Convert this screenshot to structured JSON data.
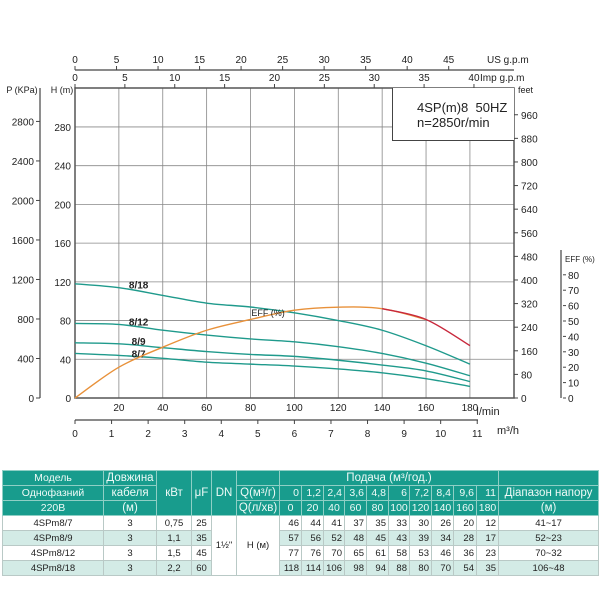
{
  "chart_data": {
    "type": "line",
    "title": "4SP(m)8  50HZ",
    "subtitle": "n=2850r/min",
    "x": [
      0,
      20,
      40,
      60,
      80,
      100,
      120,
      140,
      160,
      180
    ],
    "xlabel": "l/min",
    "xlim": [
      0,
      200
    ],
    "xticks": [
      20,
      40,
      60,
      80,
      100,
      120,
      140,
      160,
      180
    ],
    "ylabel": "H (m)",
    "ylim": [
      0,
      320
    ],
    "yticks": [
      0,
      40,
      80,
      120,
      160,
      200,
      240,
      280
    ],
    "grid": true,
    "series": [
      {
        "name": "8/18",
        "values": [
          118,
          114,
          106,
          98,
          94,
          88,
          80,
          70,
          54,
          35
        ]
      },
      {
        "name": "8/12",
        "values": [
          77,
          76,
          70,
          65,
          61,
          58,
          53,
          46,
          36,
          23
        ]
      },
      {
        "name": "8/9",
        "values": [
          57,
          56,
          52,
          48,
          45,
          43,
          39,
          34,
          28,
          17
        ]
      },
      {
        "name": "8/7",
        "values": [
          46,
          44,
          41,
          37,
          35,
          33,
          30,
          26,
          20,
          12
        ]
      },
      {
        "name": "EFF (%)",
        "axis": "EFF (%)",
        "values": [
          0,
          20,
          33,
          44,
          51,
          57,
          59,
          58,
          51,
          34
        ]
      }
    ],
    "secondary_axes": {
      "p_kpa": {
        "label": "P (KPa)",
        "ticks": [
          0,
          400,
          800,
          1200,
          1600,
          2000,
          2400,
          2800
        ]
      },
      "feet": {
        "label": "feet",
        "ticks": [
          0,
          80,
          160,
          240,
          320,
          400,
          480,
          560,
          640,
          720,
          800,
          880,
          960
        ]
      },
      "eff": {
        "label": "EFF (%)",
        "ticks": [
          0,
          10,
          20,
          30,
          40,
          50,
          60,
          70,
          80
        ]
      },
      "m3h": {
        "label": "m³/h",
        "ticks": [
          0,
          1,
          2,
          3,
          4,
          5,
          6,
          7,
          8,
          9,
          10,
          11
        ]
      },
      "us_gpm": {
        "label": "US g.p.m",
        "ticks": [
          0,
          5,
          10,
          15,
          20,
          25,
          30,
          35,
          40,
          45
        ]
      },
      "imp_gpm": {
        "label": "Imp g.p.m",
        "ticks": [
          0,
          5,
          10,
          15,
          20,
          25,
          30,
          35,
          40
        ]
      }
    },
    "colors": {
      "head": "#1f9a8c",
      "eff": "#e8913a",
      "eff_overload": "#c8283c",
      "grid": "#555555"
    }
  },
  "table": {
    "header": {
      "model": [
        "Модель",
        "Однофазний",
        "220В"
      ],
      "cable": [
        "Довжина",
        "кабеля",
        "(м)"
      ],
      "kw": "кВт",
      "uf": "μF",
      "dn": "DN",
      "flow": "Подача (м³/год.)",
      "q_m3h_label": "Q(м³/г)",
      "q_lmin_label": "Q(л/хв)",
      "q_m3h": [
        "0",
        "1,2",
        "2,4",
        "3,6",
        "4,8",
        "6",
        "7,2",
        "8,4",
        "9,6",
        "11"
      ],
      "q_lmin": [
        "0",
        "20",
        "40",
        "60",
        "80",
        "100",
        "120",
        "140",
        "160",
        "180"
      ],
      "range": [
        "Діапазон напору",
        "(м)"
      ]
    },
    "dn_value": "1½\"",
    "h_label": "H (м)",
    "rows": [
      {
        "model": "4SPm8/7",
        "cable": "3",
        "kw": "0,75",
        "uf": "25",
        "h": [
          "46",
          "44",
          "41",
          "37",
          "35",
          "33",
          "30",
          "26",
          "20",
          "12"
        ],
        "range": "41~17"
      },
      {
        "model": "4SPm8/9",
        "cable": "3",
        "kw": "1,1",
        "uf": "35",
        "h": [
          "57",
          "56",
          "52",
          "48",
          "45",
          "43",
          "39",
          "34",
          "28",
          "17"
        ],
        "range": "52~23"
      },
      {
        "model": "4SPm8/12",
        "cable": "3",
        "kw": "1,5",
        "uf": "45",
        "h": [
          "77",
          "76",
          "70",
          "65",
          "61",
          "58",
          "53",
          "46",
          "36",
          "23"
        ],
        "range": "70~32"
      },
      {
        "model": "4SPm8/18",
        "cable": "3",
        "kw": "2,2",
        "uf": "60",
        "h": [
          "118",
          "114",
          "106",
          "98",
          "94",
          "88",
          "80",
          "70",
          "54",
          "35"
        ],
        "range": "106~48"
      }
    ]
  }
}
